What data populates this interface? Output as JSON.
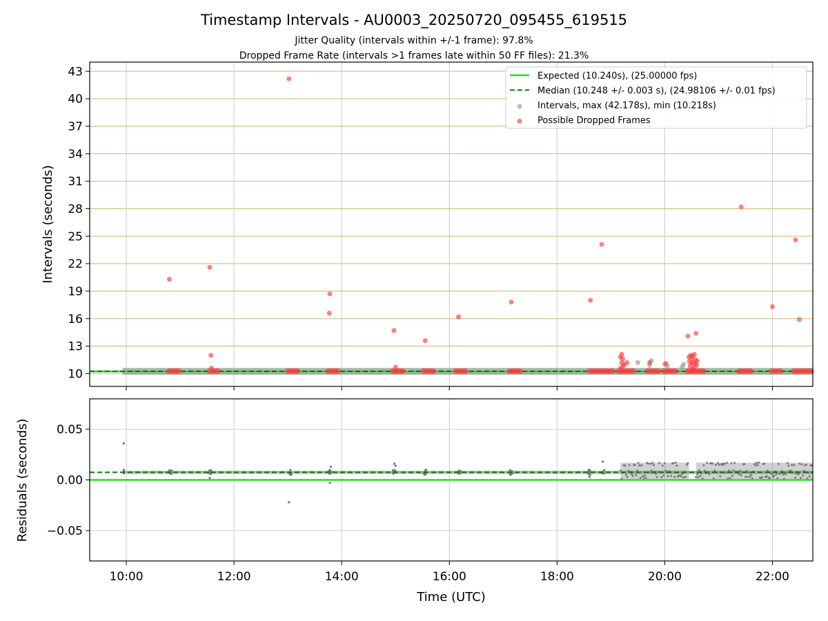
{
  "chart_data": {
    "title": "Timestamp Intervals - AU0003_20250720_095455_619515",
    "subtitle_lines": [
      "Jitter Quality (intervals within +/-1 frame): 97.8%",
      "Dropped Frame Rate (intervals >1 frames late within 50 FF files): 21.3%"
    ],
    "xlabel": "Time (UTC)",
    "x_ticks": [
      {
        "h": 10,
        "label": "10:00"
      },
      {
        "h": 12,
        "label": "12:00"
      },
      {
        "h": 14,
        "label": "14:00"
      },
      {
        "h": 16,
        "label": "16:00"
      },
      {
        "h": 18,
        "label": "18:00"
      },
      {
        "h": 20,
        "label": "20:00"
      },
      {
        "h": 22,
        "label": "22:00"
      }
    ],
    "xlim": [
      9.32,
      22.75
    ],
    "colors": {
      "expected": "#22dd22",
      "median": "#007700",
      "interval_points": "#999999",
      "dropped_points": "#ff3b3b",
      "residual_points": "#777777",
      "top_grid": "#d4c58a",
      "grid": "#cccccc"
    },
    "top": {
      "type": "scatter",
      "ylabel": "Intervals (seconds)",
      "ylim": [
        8.6,
        44.0
      ],
      "y_ticks": [
        {
          "v": 10,
          "label": "10"
        },
        {
          "v": 13,
          "label": "13"
        },
        {
          "v": 16,
          "label": "16"
        },
        {
          "v": 19,
          "label": "19"
        },
        {
          "v": 22,
          "label": "22"
        },
        {
          "v": 25,
          "label": "25"
        },
        {
          "v": 28,
          "label": "28"
        },
        {
          "v": 31,
          "label": "31"
        },
        {
          "v": 34,
          "label": "34"
        },
        {
          "v": 37,
          "label": "37"
        },
        {
          "v": 40,
          "label": "40"
        },
        {
          "v": 43,
          "label": "43"
        }
      ],
      "expected": 10.24,
      "median": 10.248,
      "interval_band": {
        "x_start": 9.93,
        "x_end": 22.75,
        "y": 10.24
      },
      "legend": [
        {
          "kind": "line",
          "key": "expected",
          "label": "Expected (10.240s), (25.00000 fps)"
        },
        {
          "kind": "dash",
          "key": "median",
          "label": "Median (10.248 +/- 0.003 s), (24.98106 +/- 0.01 fps)"
        },
        {
          "kind": "dot",
          "key": "interval_points",
          "label": "Intervals, max (42.178s), min (10.218s)"
        },
        {
          "kind": "dot",
          "key": "dropped_points",
          "label": "Possible Dropped Frames"
        }
      ],
      "grey_outliers": [
        {
          "x": 19.5,
          "y": 11.2
        },
        {
          "x": 19.75,
          "y": 11.4
        },
        {
          "x": 19.72,
          "y": 10.9
        },
        {
          "x": 20.0,
          "y": 11.0
        },
        {
          "x": 20.35,
          "y": 11.0
        },
        {
          "x": 20.32,
          "y": 10.7
        },
        {
          "x": 20.05,
          "y": 10.8
        },
        {
          "x": 20.6,
          "y": 10.9
        }
      ],
      "dropped_outliers": [
        {
          "x": 10.8,
          "y": 20.3
        },
        {
          "x": 11.55,
          "y": 21.6
        },
        {
          "x": 11.57,
          "y": 12.0
        },
        {
          "x": 11.58,
          "y": 10.6
        },
        {
          "x": 13.02,
          "y": 42.178
        },
        {
          "x": 13.78,
          "y": 18.7
        },
        {
          "x": 13.77,
          "y": 16.6
        },
        {
          "x": 14.97,
          "y": 14.7
        },
        {
          "x": 15.0,
          "y": 10.7
        },
        {
          "x": 15.55,
          "y": 13.6
        },
        {
          "x": 16.17,
          "y": 16.2
        },
        {
          "x": 17.15,
          "y": 17.8
        },
        {
          "x": 18.62,
          "y": 18.0
        },
        {
          "x": 18.83,
          "y": 24.1
        },
        {
          "x": 19.2,
          "y": 12.1
        },
        {
          "x": 19.18,
          "y": 11.8
        },
        {
          "x": 19.22,
          "y": 11.6
        },
        {
          "x": 19.2,
          "y": 11.2
        },
        {
          "x": 19.25,
          "y": 11.0
        },
        {
          "x": 19.3,
          "y": 11.2
        },
        {
          "x": 19.22,
          "y": 10.8
        },
        {
          "x": 19.18,
          "y": 10.6
        },
        {
          "x": 19.72,
          "y": 11.2
        },
        {
          "x": 20.02,
          "y": 11.1
        },
        {
          "x": 20.43,
          "y": 14.1
        },
        {
          "x": 20.58,
          "y": 14.4
        },
        {
          "x": 20.45,
          "y": 11.8
        },
        {
          "x": 20.48,
          "y": 12.0
        },
        {
          "x": 20.5,
          "y": 11.6
        },
        {
          "x": 20.52,
          "y": 11.9
        },
        {
          "x": 20.55,
          "y": 12.1
        },
        {
          "x": 20.57,
          "y": 11.5
        },
        {
          "x": 20.46,
          "y": 11.3
        },
        {
          "x": 20.5,
          "y": 11.1
        },
        {
          "x": 20.54,
          "y": 11.2
        },
        {
          "x": 20.58,
          "y": 11.0
        },
        {
          "x": 20.6,
          "y": 11.4
        },
        {
          "x": 20.47,
          "y": 10.8
        },
        {
          "x": 20.55,
          "y": 10.7
        },
        {
          "x": 20.52,
          "y": 10.5
        },
        {
          "x": 21.42,
          "y": 28.2
        },
        {
          "x": 22.0,
          "y": 17.3
        },
        {
          "x": 22.43,
          "y": 24.6
        },
        {
          "x": 22.5,
          "y": 15.9
        }
      ],
      "dropped_clusters": [
        {
          "x_start": 10.8,
          "x_end": 10.98
        },
        {
          "x_start": 11.55,
          "x_end": 11.7
        },
        {
          "x_start": 13.0,
          "x_end": 13.18
        },
        {
          "x_start": 13.75,
          "x_end": 13.93
        },
        {
          "x_start": 14.95,
          "x_end": 15.13
        },
        {
          "x_start": 15.52,
          "x_end": 15.7
        },
        {
          "x_start": 16.12,
          "x_end": 16.3
        },
        {
          "x_start": 17.12,
          "x_end": 17.32
        },
        {
          "x_start": 18.6,
          "x_end": 18.8
        },
        {
          "x_start": 18.85,
          "x_end": 19.03
        },
        {
          "x_start": 19.15,
          "x_end": 19.42
        },
        {
          "x_start": 19.68,
          "x_end": 19.88
        },
        {
          "x_start": 19.98,
          "x_end": 20.2
        },
        {
          "x_start": 20.42,
          "x_end": 20.72
        },
        {
          "x_start": 21.38,
          "x_end": 21.6
        },
        {
          "x_start": 21.98,
          "x_end": 22.15
        },
        {
          "x_start": 22.4,
          "x_end": 22.72
        }
      ]
    },
    "bottom": {
      "type": "scatter",
      "ylabel": "Residuals (seconds)",
      "ylim": [
        -0.08,
        0.08
      ],
      "y_ticks": [
        {
          "v": -0.05,
          "label": "−0.05"
        },
        {
          "v": 0.0,
          "label": "0.00"
        },
        {
          "v": 0.05,
          "label": "0.05"
        }
      ],
      "expected_residual": 0.0,
      "median_residual": 0.0075,
      "clusters": [
        {
          "x": 9.95,
          "spread": 0.02,
          "n": 3
        },
        {
          "x": 10.82,
          "spread": 0.06,
          "n": 10
        },
        {
          "x": 11.55,
          "spread": 0.06,
          "n": 10
        },
        {
          "x": 13.05,
          "spread": 0.06,
          "n": 10
        },
        {
          "x": 13.78,
          "spread": 0.06,
          "n": 12
        },
        {
          "x": 14.98,
          "spread": 0.06,
          "n": 12
        },
        {
          "x": 15.55,
          "spread": 0.06,
          "n": 10
        },
        {
          "x": 16.18,
          "spread": 0.06,
          "n": 10
        },
        {
          "x": 17.15,
          "spread": 0.06,
          "n": 10
        },
        {
          "x": 18.6,
          "spread": 0.06,
          "n": 10
        },
        {
          "x": 18.85,
          "spread": 0.06,
          "n": 10
        }
      ],
      "outliers": [
        {
          "x": 9.95,
          "y": 0.036
        },
        {
          "x": 13.02,
          "y": -0.022
        },
        {
          "x": 13.78,
          "y": -0.003
        },
        {
          "x": 13.8,
          "y": 0.013
        },
        {
          "x": 14.98,
          "y": 0.016
        },
        {
          "x": 15.0,
          "y": 0.014
        },
        {
          "x": 18.85,
          "y": 0.018
        },
        {
          "x": 11.55,
          "y": 0.002
        },
        {
          "x": 18.6,
          "y": 0.003
        }
      ],
      "dense_regions": [
        {
          "x_start": 19.18,
          "x_end": 20.45,
          "y_low": 0.001,
          "y_high": 0.017
        },
        {
          "x_start": 20.58,
          "x_end": 22.75,
          "y_low": 0.001,
          "y_high": 0.017
        }
      ],
      "residual_band": {
        "x_start": 9.93,
        "x_end": 22.75,
        "y_low": 0.006,
        "y_high": 0.009
      }
    }
  }
}
